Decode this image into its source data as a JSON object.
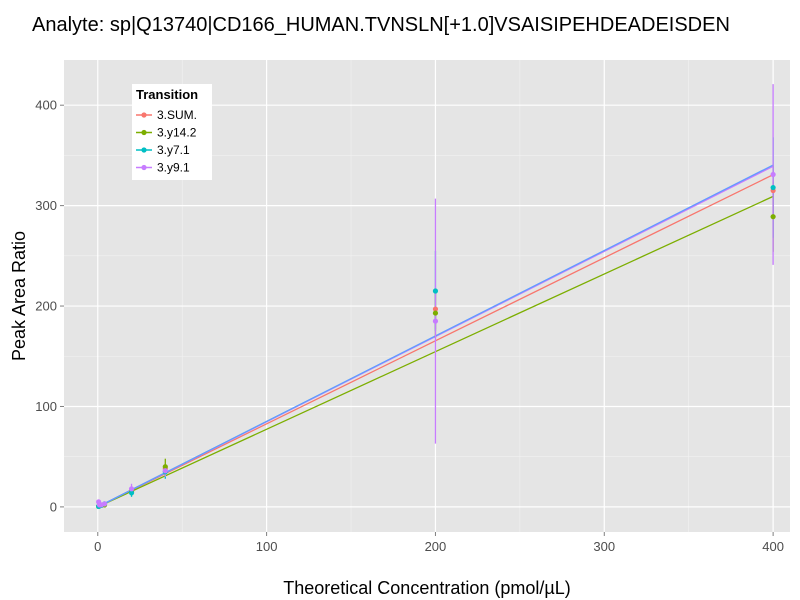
{
  "chart_data": {
    "type": "scatter",
    "title": "Analyte: sp|Q13740|CD166_HUMAN.TVNSLN[+1.0]VSAISIPEHDEADEISDEN",
    "xlabel": "Theoretical Concentration (pmol/µL)",
    "ylabel": "Peak Area Ratio",
    "xlim": [
      -20,
      410
    ],
    "ylim": [
      -25,
      445
    ],
    "x_ticks": [
      0,
      100,
      200,
      300,
      400
    ],
    "y_ticks": [
      0,
      100,
      200,
      300,
      400
    ],
    "x_tick_labels": [
      "0",
      "100",
      "200",
      "300",
      "400"
    ],
    "y_tick_labels": [
      "0",
      "100",
      "200",
      "300",
      "400"
    ],
    "grid": true,
    "legend_title": "Transition",
    "legend_position": "top-left",
    "series": [
      {
        "name": "3.SUM.",
        "color": "#F8766D",
        "fit": {
          "slope": 0.827,
          "intercept": 0
        },
        "points": [
          {
            "x": 0.5,
            "y": 0.5,
            "err": 1
          },
          {
            "x": 1,
            "y": 1,
            "err": 1
          },
          {
            "x": 2,
            "y": 1.5,
            "err": 1
          },
          {
            "x": 4,
            "y": 2,
            "err": 1
          },
          {
            "x": 20,
            "y": 16,
            "err": 3
          },
          {
            "x": 40,
            "y": 38,
            "err": 5
          },
          {
            "x": 200,
            "y": 197,
            "err": 20
          },
          {
            "x": 400,
            "y": 315,
            "err": 25
          }
        ]
      },
      {
        "name": "3.y14.2",
        "color": "#7CAE00",
        "fit": {
          "slope": 0.773,
          "intercept": 0
        },
        "points": [
          {
            "x": 0.5,
            "y": 0.5,
            "err": 1
          },
          {
            "x": 1,
            "y": 1,
            "err": 1
          },
          {
            "x": 2,
            "y": 1.5,
            "err": 1
          },
          {
            "x": 4,
            "y": 2,
            "err": 1
          },
          {
            "x": 20,
            "y": 15,
            "err": 4
          },
          {
            "x": 40,
            "y": 40,
            "err": 8
          },
          {
            "x": 200,
            "y": 193,
            "err": 25
          },
          {
            "x": 400,
            "y": 289,
            "err": 35
          }
        ]
      },
      {
        "name": "3.y7.1",
        "color": "#00BFC4",
        "fit": {
          "slope": 0.85,
          "intercept": 0
        },
        "points": [
          {
            "x": 0.5,
            "y": 0.5,
            "err": 1
          },
          {
            "x": 1,
            "y": 1,
            "err": 1
          },
          {
            "x": 2,
            "y": 1.5,
            "err": 1
          },
          {
            "x": 4,
            "y": 3,
            "err": 1
          },
          {
            "x": 20,
            "y": 14,
            "err": 4
          },
          {
            "x": 40,
            "y": 35,
            "err": 7
          },
          {
            "x": 200,
            "y": 215,
            "err": 40
          },
          {
            "x": 400,
            "y": 318,
            "err": 50
          }
        ]
      },
      {
        "name": "3.y9.1",
        "color": "#C77CFF",
        "fit": {
          "slope": 0.848,
          "intercept": 0
        },
        "points": [
          {
            "x": 0.5,
            "y": 5,
            "err": 2
          },
          {
            "x": 1,
            "y": 2,
            "err": 1
          },
          {
            "x": 2,
            "y": 2,
            "err": 1
          },
          {
            "x": 4,
            "y": 3,
            "err": 1
          },
          {
            "x": 20,
            "y": 18,
            "err": 5
          },
          {
            "x": 40,
            "y": 36,
            "err": 6
          },
          {
            "x": 200,
            "y": 185,
            "err": 122
          },
          {
            "x": 400,
            "y": 331,
            "err": 90
          }
        ]
      }
    ],
    "extra_fit_line": {
      "color": "#619CFF",
      "slope": 0.851,
      "intercept": 0
    }
  }
}
